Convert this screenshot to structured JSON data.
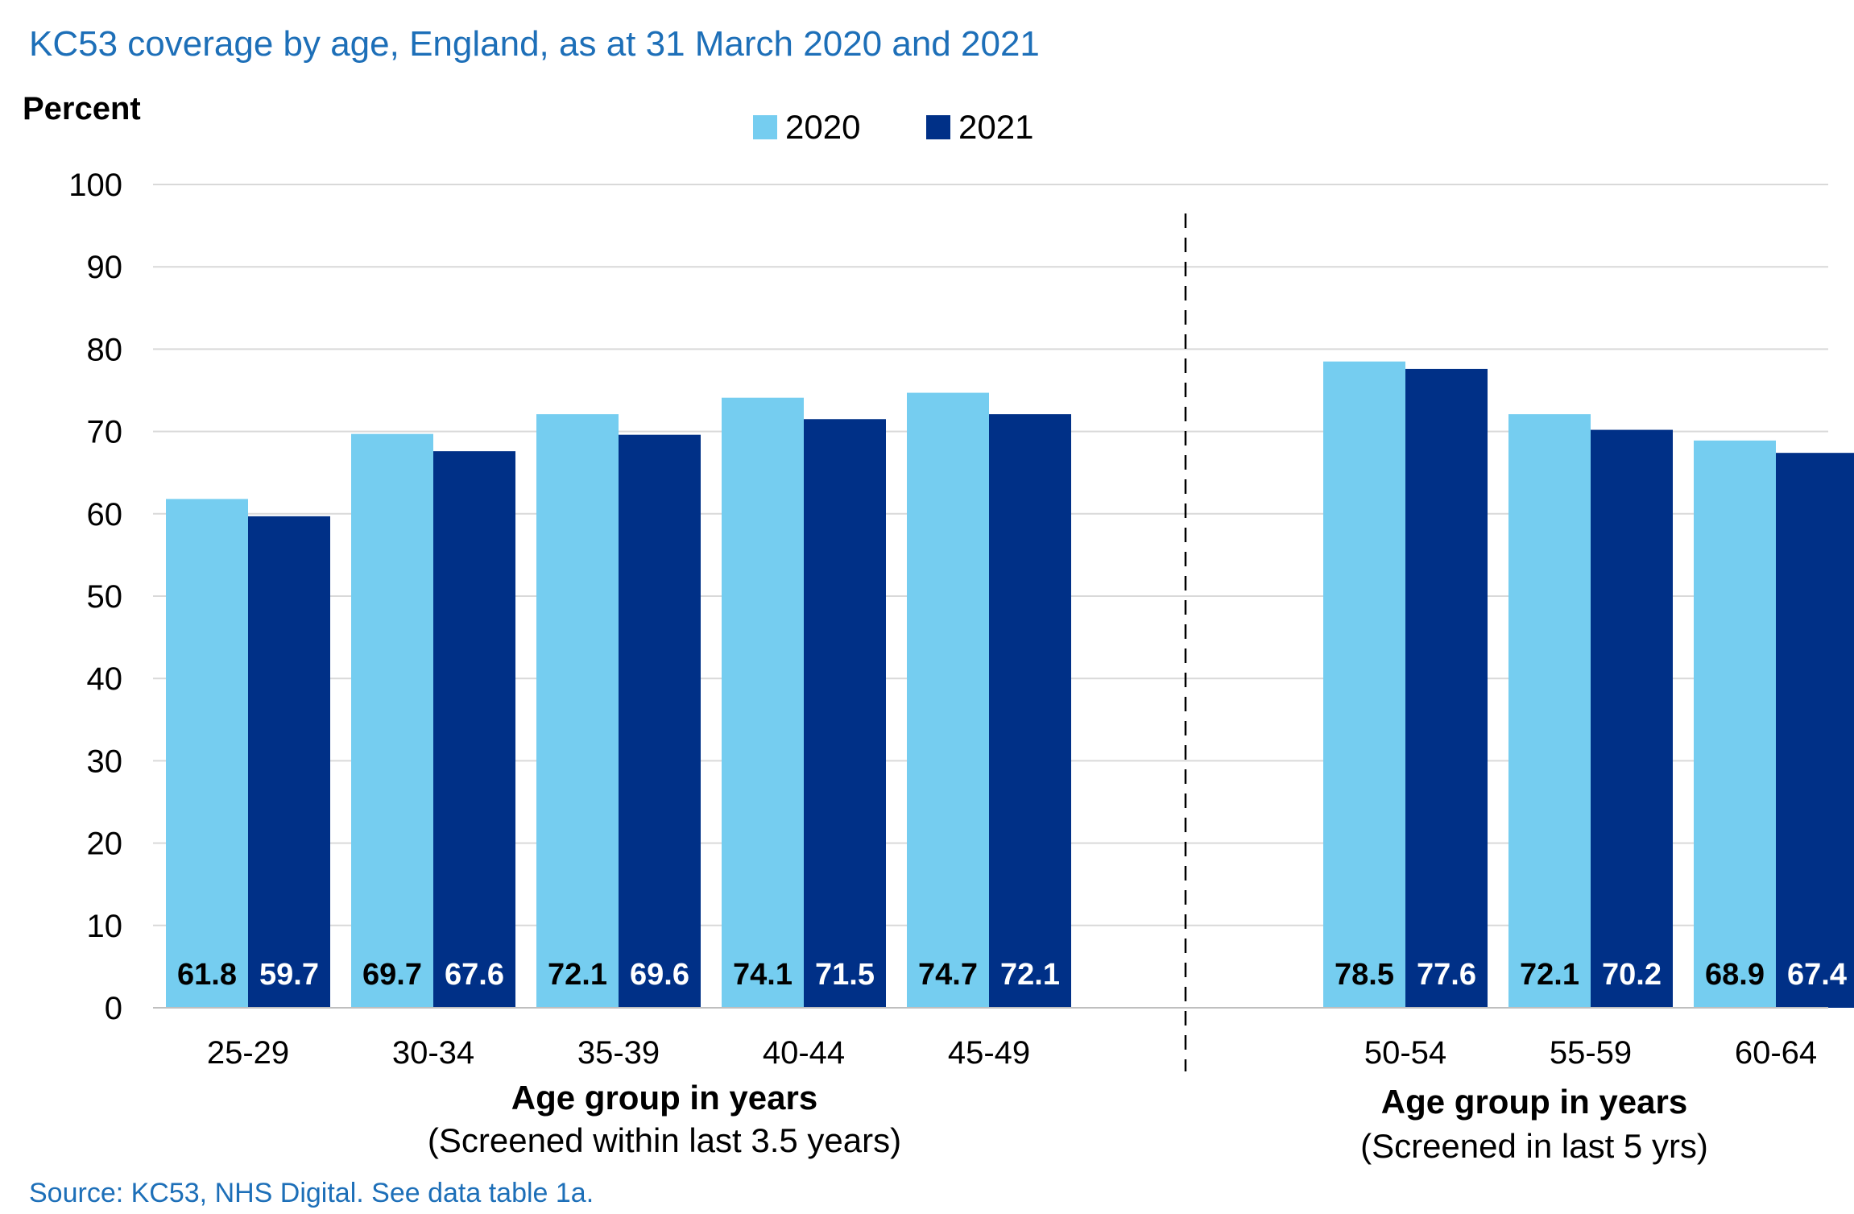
{
  "title": "KC53 coverage by age, England, as at 31 March 2020  and 2021",
  "source": "Source: KC53, NHS Digital.  See data table 1a.",
  "chart_data": {
    "type": "bar",
    "ylabel": "Percent",
    "ylim": [
      0,
      100
    ],
    "yticks": [
      0,
      10,
      20,
      30,
      40,
      50,
      60,
      70,
      80,
      90,
      100
    ],
    "grid": true,
    "legend": "top-center",
    "colors": {
      "2020": "#75cdf0",
      "2021": "#003087"
    },
    "categories": [
      "25-29",
      "30-34",
      "35-39",
      "40-44",
      "45-49",
      "50-54",
      "55-59",
      "60-64"
    ],
    "series": [
      {
        "name": "2020",
        "values": [
          61.8,
          69.7,
          72.1,
          74.1,
          74.7,
          78.5,
          72.1,
          68.9
        ]
      },
      {
        "name": "2021",
        "values": [
          59.7,
          67.6,
          69.6,
          71.5,
          72.1,
          77.6,
          70.2,
          67.4
        ]
      }
    ],
    "groups": [
      {
        "xlabel": "Age group in years",
        "note": "(Screened within last 3.5 years)",
        "categories": [
          "25-29",
          "30-34",
          "35-39",
          "40-44",
          "45-49"
        ]
      },
      {
        "xlabel": "Age group in years",
        "note": "(Screened in last 5 yrs)",
        "categories": [
          "50-54",
          "55-59",
          "60-64"
        ]
      }
    ]
  }
}
